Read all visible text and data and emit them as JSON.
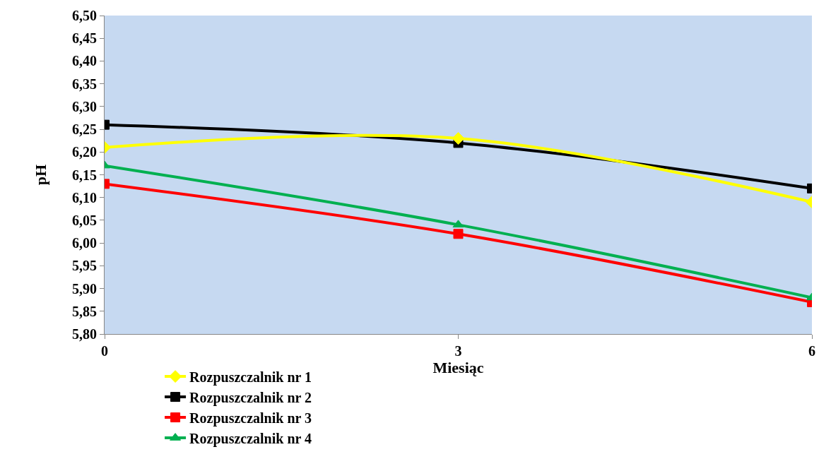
{
  "chart_data": {
    "type": "line",
    "xlabel": "Miesiąc",
    "ylabel": "pH",
    "x": [
      0,
      3,
      6
    ],
    "xlim": [
      0,
      6
    ],
    "xticks": [
      0,
      3,
      6
    ],
    "ylim": [
      5.8,
      6.5
    ],
    "yticks": [
      {
        "value": 5.8,
        "label": "5,80"
      },
      {
        "value": 5.85,
        "label": "5,85"
      },
      {
        "value": 5.9,
        "label": "5,90"
      },
      {
        "value": 5.95,
        "label": "5,95"
      },
      {
        "value": 6.0,
        "label": "6,00"
      },
      {
        "value": 6.05,
        "label": "6,05"
      },
      {
        "value": 6.1,
        "label": "6,10"
      },
      {
        "value": 6.15,
        "label": "6,15"
      },
      {
        "value": 6.2,
        "label": "6,20"
      },
      {
        "value": 6.25,
        "label": "6,25"
      },
      {
        "value": 6.3,
        "label": "6,30"
      },
      {
        "value": 6.35,
        "label": "6,35"
      },
      {
        "value": 6.4,
        "label": "6,40"
      },
      {
        "value": 6.45,
        "label": "6,45"
      },
      {
        "value": 6.5,
        "label": "6,50"
      }
    ],
    "grid": false,
    "legend": "bottom",
    "line_style": "solid",
    "series": [
      {
        "name": "Rozpuszczalnik nr 1",
        "color": "#ffff00",
        "marker": "diamond",
        "values": [
          6.21,
          6.23,
          6.09
        ]
      },
      {
        "name": "Rozpuszczalnik nr 2",
        "color": "#000000",
        "marker": "square",
        "values": [
          6.26,
          6.22,
          6.12
        ]
      },
      {
        "name": "Rozpuszczalnik nr 3",
        "color": "#ff0000",
        "marker": "square",
        "values": [
          6.13,
          6.02,
          5.87
        ]
      },
      {
        "name": "Rozpuszczalnik nr 4",
        "color": "#00b050",
        "marker": "triangle",
        "values": [
          6.17,
          6.04,
          5.88
        ]
      }
    ]
  }
}
